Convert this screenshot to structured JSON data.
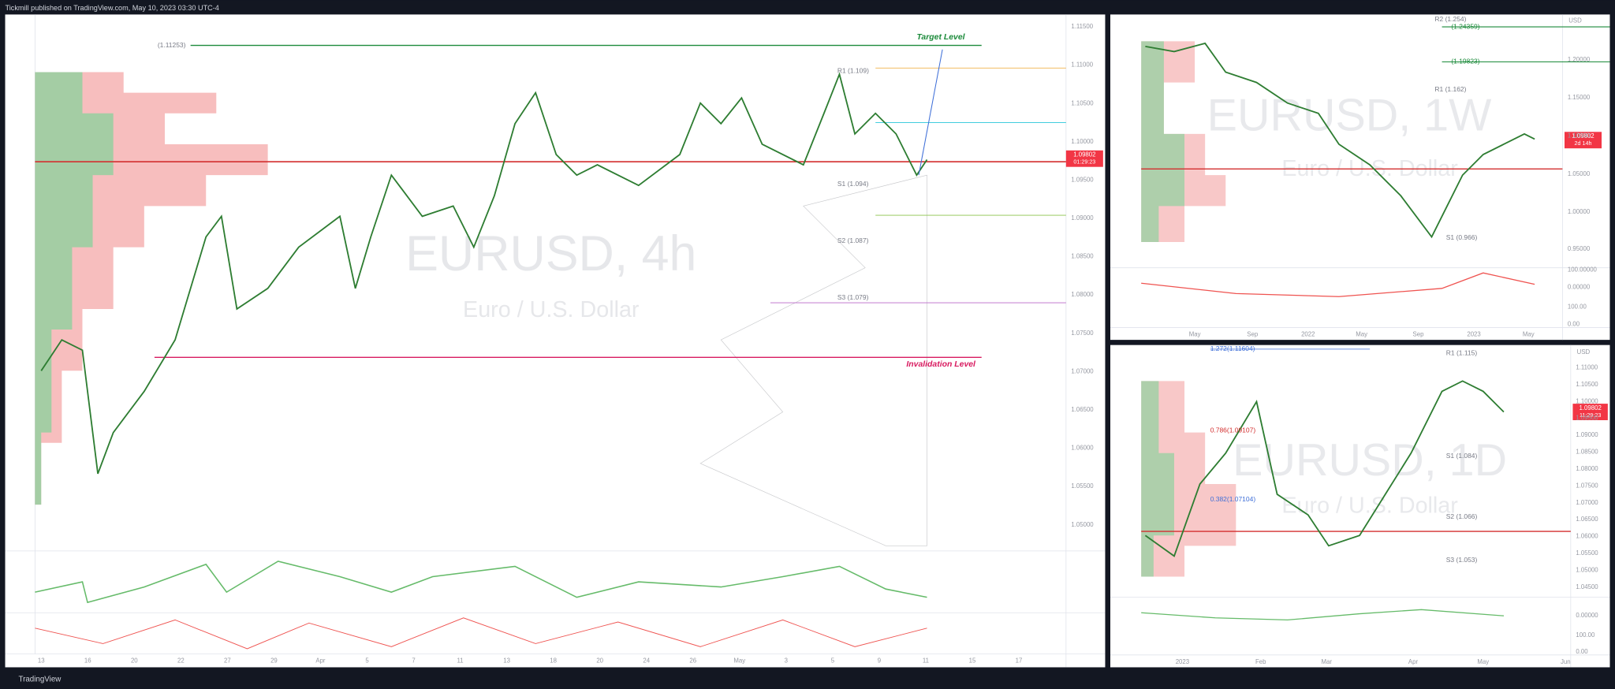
{
  "header": {
    "publisher": "Tickmill published on TradingView.com, May 10, 2023 03:30 UTC-4"
  },
  "footer": {
    "brand": "TradingView"
  },
  "panels": [
    {
      "symbol": "EURUSD, 4h",
      "description": "Euro / U.S. Dollar",
      "price_labels": [
        "1.11500",
        "1.11000",
        "1.10500",
        "1.10000",
        "1.09500",
        "1.09000",
        "1.08500",
        "1.08000",
        "1.07500",
        "1.07000",
        "1.06500",
        "1.06000",
        "1.05500",
        "1.05000"
      ],
      "time_labels": [
        "13",
        "16",
        "20",
        "22",
        "27",
        "29",
        "Apr",
        "5",
        "7",
        "11",
        "13",
        "18",
        "20",
        "24",
        "26",
        "May",
        "3",
        "5",
        "9",
        "11",
        "15",
        "17"
      ],
      "last_price": "1.09802",
      "countdown": "01:29:23",
      "levels": [
        "(1.11253)",
        "Target Level",
        "R1 (1.109)",
        "S1 (1.094)",
        "S2 (1.087)",
        "S3 (1.079)",
        "Invalidation Level"
      ]
    },
    {
      "symbol": "EURUSD, 1W",
      "description": "Euro / U.S. Dollar",
      "currency": "USD",
      "price_labels": [
        "1.20000",
        "1.15000",
        "1.10000",
        "1.05000",
        "1.00000",
        "0.95000",
        "100.00000",
        "0.00000",
        "100.00",
        "0.00"
      ],
      "time_labels": [
        "May",
        "Sep",
        "2022",
        "May",
        "Sep",
        "2023",
        "May"
      ],
      "last_price": "1.09802",
      "countdown": "2d 14h",
      "levels": [
        "R2 (1.254)",
        "(1.24359)",
        "(1.19823)",
        "R1 (1.162)",
        "S1 (0.966)"
      ]
    },
    {
      "symbol": "EURUSD, 1D",
      "description": "Euro / U.S. Dollar",
      "currency": "USD",
      "price_labels": [
        "1.11000",
        "1.10500",
        "1.10000",
        "1.09500",
        "1.09000",
        "1.08500",
        "1.08000",
        "1.07500",
        "1.07000",
        "1.06500",
        "1.06000",
        "1.05500",
        "1.05000",
        "1.04500",
        "0.00000",
        "100.00",
        "0.00"
      ],
      "time_labels": [
        "2023",
        "Feb",
        "Mar",
        "Apr",
        "May",
        "Jun"
      ],
      "last_price": "1.09802",
      "countdown": "11:29:23",
      "levels": [
        "1.272(1.11604)",
        "R1 (1.115)",
        "0.786(1.09107)",
        "S1 (1.084)",
        "0.382(1.07104)",
        "S2 (1.066)",
        "S3 (1.053)"
      ]
    }
  ]
}
